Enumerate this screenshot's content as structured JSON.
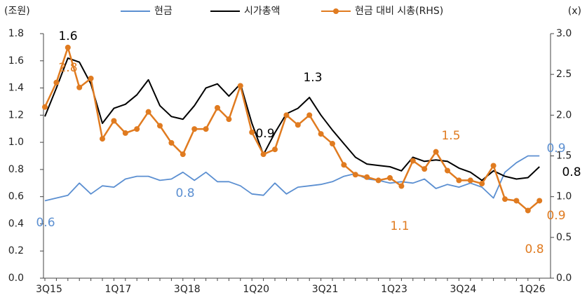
{
  "chart_data": {
    "type": "line",
    "y_unit_label": "(조원)",
    "y2_unit_label": "(x)",
    "categories": [
      "3Q15",
      null,
      null,
      null,
      null,
      null,
      "1Q17",
      null,
      null,
      null,
      null,
      null,
      "3Q18",
      null,
      null,
      null,
      null,
      null,
      "1Q20",
      null,
      null,
      null,
      null,
      null,
      "3Q21",
      null,
      null,
      null,
      null,
      null,
      "1Q23",
      null,
      null,
      null,
      null,
      null,
      "3Q24",
      null,
      null,
      null,
      null,
      null,
      "1Q26",
      null
    ],
    "series": [
      {
        "name": "현금",
        "color": "#5b8fd1",
        "axis": "y",
        "marker": false,
        "values": [
          0.57,
          0.59,
          0.61,
          0.7,
          0.62,
          0.68,
          0.67,
          0.73,
          0.75,
          0.75,
          0.72,
          0.73,
          0.78,
          0.72,
          0.78,
          0.71,
          0.71,
          0.68,
          0.62,
          0.61,
          0.7,
          0.62,
          0.67,
          0.68,
          0.69,
          0.71,
          0.75,
          0.77,
          0.73,
          0.72,
          0.7,
          0.71,
          0.7,
          0.73,
          0.66,
          0.69,
          0.67,
          0.7,
          0.67,
          0.59,
          0.78,
          0.85,
          0.9,
          0.9
        ]
      },
      {
        "name": "시가총액",
        "color": "#000000",
        "axis": "y",
        "marker": false,
        "values": [
          1.19,
          1.4,
          1.62,
          1.59,
          1.43,
          1.14,
          1.25,
          1.28,
          1.35,
          1.46,
          1.27,
          1.19,
          1.17,
          1.27,
          1.4,
          1.43,
          1.34,
          1.43,
          1.14,
          0.91,
          1.07,
          1.21,
          1.25,
          1.33,
          1.2,
          1.09,
          0.99,
          0.89,
          0.84,
          0.83,
          0.82,
          0.79,
          0.89,
          0.86,
          0.87,
          0.86,
          0.81,
          0.78,
          0.72,
          0.79,
          0.75,
          0.73,
          0.74,
          0.82
        ]
      },
      {
        "name": "현금 대비 시총(RHS)",
        "color": "#e07b20",
        "axis": "y2",
        "marker": true,
        "values": [
          2.1,
          2.4,
          2.83,
          2.34,
          2.45,
          1.71,
          1.93,
          1.78,
          1.83,
          2.04,
          1.87,
          1.66,
          1.52,
          1.83,
          1.83,
          2.09,
          1.95,
          2.36,
          1.79,
          1.52,
          1.58,
          2.0,
          1.88,
          2.0,
          1.77,
          1.65,
          1.39,
          1.27,
          1.24,
          1.2,
          1.23,
          1.13,
          1.44,
          1.34,
          1.55,
          1.32,
          1.2,
          1.2,
          1.16,
          1.38,
          0.97,
          0.95,
          0.83,
          0.95
        ]
      }
    ],
    "annotations": [
      {
        "text": "1.6",
        "color": "#000000"
      },
      {
        "text": "2.8",
        "color": "#e07b20"
      },
      {
        "text": "0.6",
        "color": "#5b8fd1"
      },
      {
        "text": "0.8",
        "color": "#5b8fd1"
      },
      {
        "text": "0.9",
        "color": "#000000"
      },
      {
        "text": "1.3",
        "color": "#000000"
      },
      {
        "text": "1.1",
        "color": "#e07b20"
      },
      {
        "text": "1.5",
        "color": "#e07b20"
      },
      {
        "text": "0.9",
        "color": "#5b8fd1"
      },
      {
        "text": "0.8",
        "color": "#000000"
      },
      {
        "text": "0.9",
        "color": "#e07b20"
      },
      {
        "text": "0.8",
        "color": "#e07b20"
      }
    ],
    "ylim": [
      0,
      1.8
    ],
    "yticks": [
      {
        "value": 0,
        "label": "0.0"
      },
      0.2,
      0.4,
      0.6,
      0.8,
      {
        "value": 1,
        "label": "1.0"
      },
      1.2,
      1.4,
      1.6,
      1.8
    ],
    "y2lim": [
      0,
      3
    ],
    "y2ticks": [
      {
        "value": 0,
        "label": "0.0"
      },
      0.5,
      {
        "value": 1,
        "label": "1.0"
      },
      1.5,
      {
        "value": 2,
        "label": "2.0"
      },
      2.5,
      {
        "value": 3,
        "label": "3.0"
      }
    ],
    "grid": false
  }
}
